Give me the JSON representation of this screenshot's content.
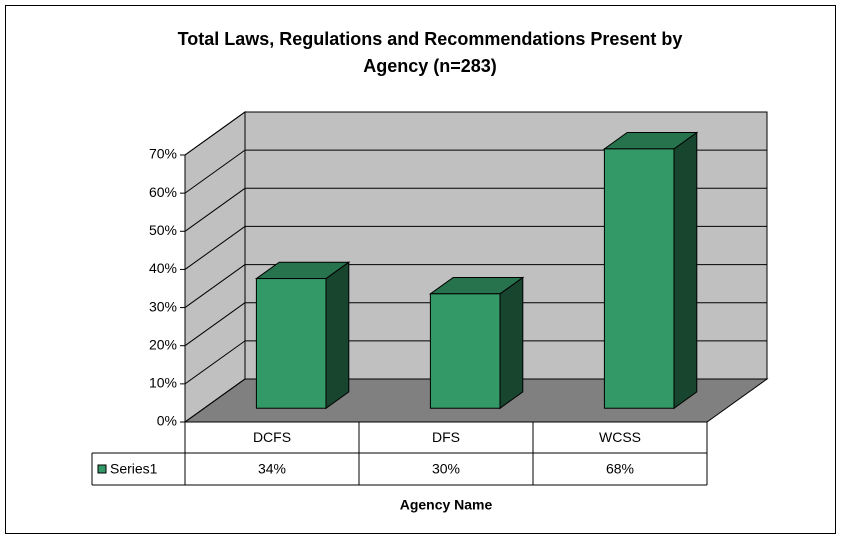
{
  "chart_data": {
    "type": "bar3d",
    "title": "Total Laws, Regulations and Recommendations Present by Agency (n=283)",
    "x_label": "Agency Name",
    "categories": [
      "DCFS",
      "DFS",
      "WCSS"
    ],
    "series": [
      {
        "name": "Series1",
        "color": "#339966",
        "values": [
          34,
          30,
          68
        ],
        "value_labels": [
          "34%",
          "30%",
          "68%"
        ]
      }
    ],
    "ylim": [
      0,
      70
    ],
    "yticks": [
      {
        "value": 0,
        "label": "0%"
      },
      {
        "value": 10,
        "label": "10%"
      },
      {
        "value": 20,
        "label": "20%"
      },
      {
        "value": 30,
        "label": "30%"
      },
      {
        "value": 40,
        "label": "40%"
      },
      {
        "value": 50,
        "label": "50%"
      },
      {
        "value": 60,
        "label": "60%"
      },
      {
        "value": 70,
        "label": "70%"
      }
    ],
    "grid": true,
    "data_table": true
  }
}
